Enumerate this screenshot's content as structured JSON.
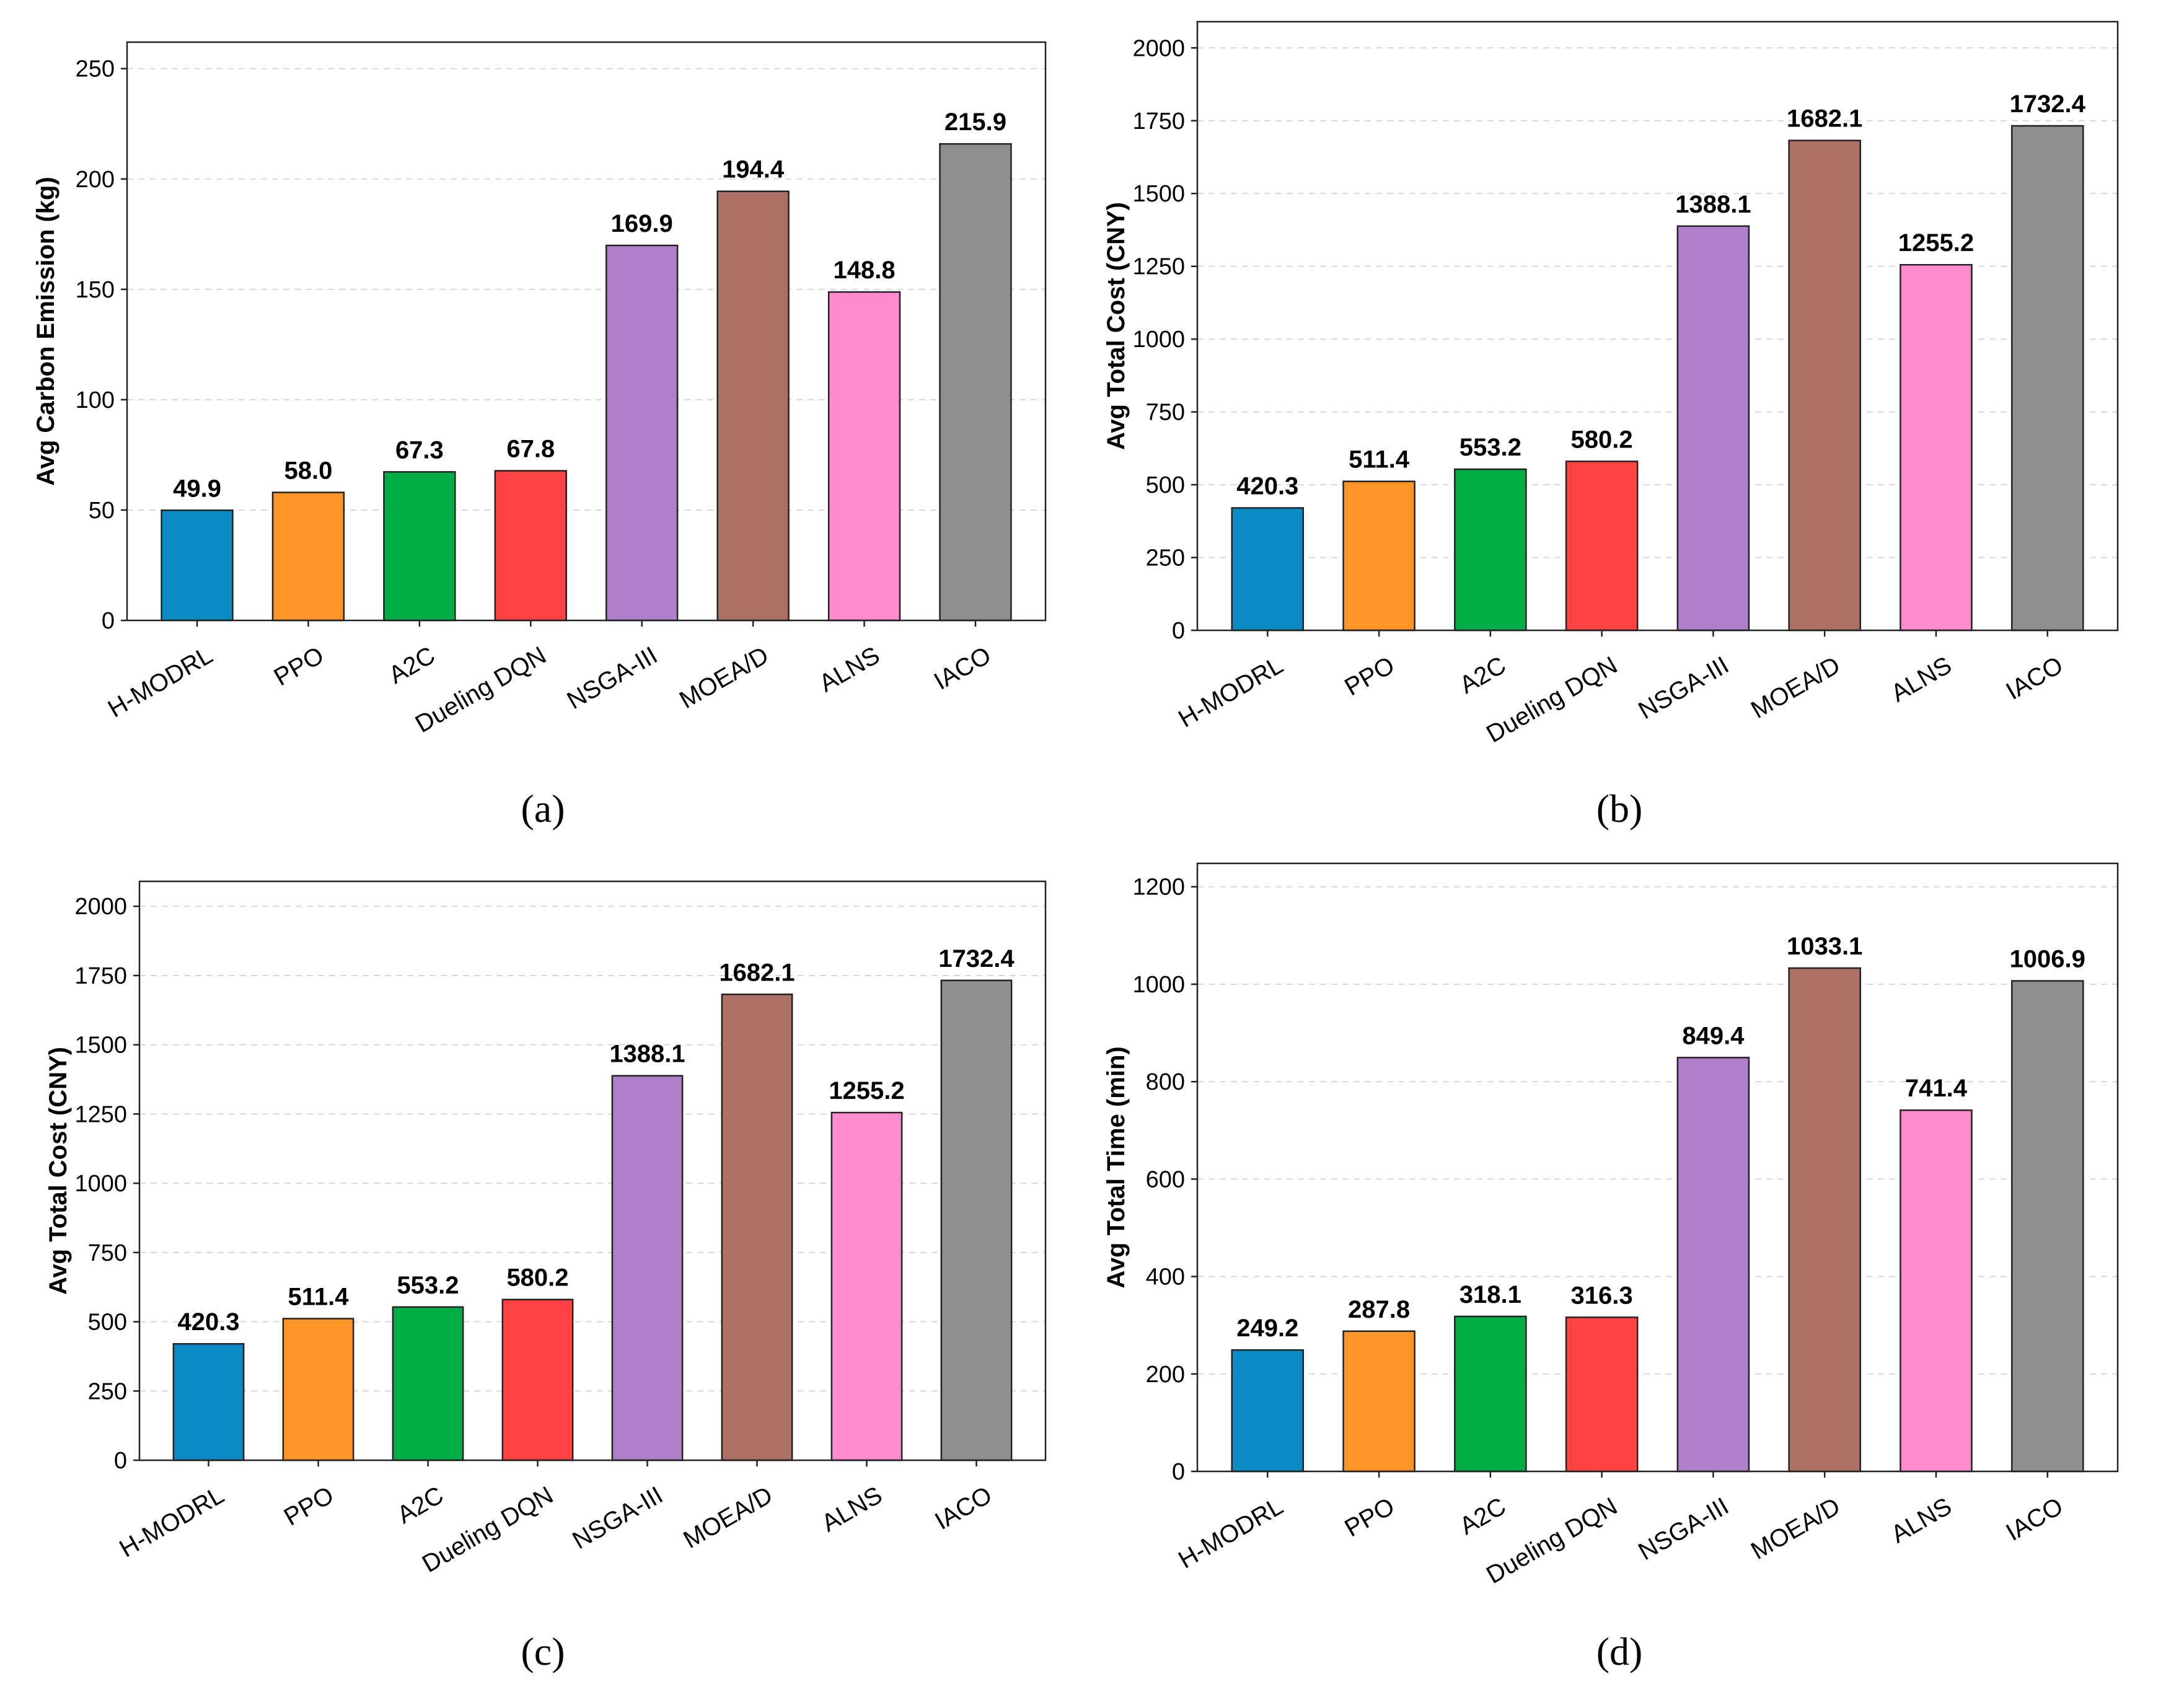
{
  "colors": {
    "H-MODRL": "#0a8bc4",
    "PPO": "#ff9429",
    "A2C": "#00ad47",
    "Dueling DQN": "#ff4343",
    "NSGA-III": "#b07fc9",
    "MOEA/D": "#ad7065",
    "ALNS": "#ff8bcf",
    "IACO": "#8f8f8f"
  },
  "chart_data": [
    {
      "panel": "a",
      "caption": "(a)",
      "type": "bar",
      "categories": [
        "H-MODRL",
        "PPO",
        "A2C",
        "Dueling DQN",
        "NSGA-III",
        "MOEA/D",
        "ALNS",
        "IACO"
      ],
      "values": [
        49.9,
        58.0,
        67.3,
        67.8,
        169.9,
        194.4,
        148.8,
        215.9
      ],
      "value_labels": [
        "49.9",
        "58.0",
        "67.3",
        "67.8",
        "169.9",
        "194.4",
        "148.8",
        "215.9"
      ],
      "ylabel": "Avg Carbon Emission (kg)",
      "xlabel": "",
      "ylim": [
        0,
        262
      ],
      "yticks": [
        0,
        50,
        100,
        150,
        200,
        250
      ],
      "grid": true
    },
    {
      "panel": "b",
      "caption": "(b)",
      "type": "bar",
      "categories": [
        "H-MODRL",
        "PPO",
        "A2C",
        "Dueling DQN",
        "NSGA-III",
        "MOEA/D",
        "ALNS",
        "IACO"
      ],
      "values": [
        420.3,
        511.4,
        553.2,
        580.2,
        1388.1,
        1682.1,
        1255.2,
        1732.4
      ],
      "value_labels": [
        "420.3",
        "511.4",
        "553.2",
        "580.2",
        "1388.1",
        "1682.1",
        "1255.2",
        "1732.4"
      ],
      "ylabel": "Avg Total Cost (CNY)",
      "xlabel": "",
      "ylim": [
        0,
        2090
      ],
      "yticks": [
        0,
        250,
        500,
        750,
        1000,
        1250,
        1500,
        1750,
        2000
      ],
      "grid": true
    },
    {
      "panel": "c",
      "caption": "(c)",
      "type": "bar",
      "categories": [
        "H-MODRL",
        "PPO",
        "A2C",
        "Dueling DQN",
        "NSGA-III",
        "MOEA/D",
        "ALNS",
        "IACO"
      ],
      "values": [
        420.3,
        511.4,
        553.2,
        580.2,
        1388.1,
        1682.1,
        1255.2,
        1732.4
      ],
      "value_labels": [
        "420.3",
        "511.4",
        "553.2",
        "580.2",
        "1388.1",
        "1682.1",
        "1255.2",
        "1732.4"
      ],
      "ylabel": "Avg Total Cost (CNY)",
      "xlabel": "",
      "ylim": [
        0,
        2090
      ],
      "yticks": [
        0,
        250,
        500,
        750,
        1000,
        1250,
        1500,
        1750,
        2000
      ],
      "grid": true
    },
    {
      "panel": "d",
      "caption": "(d)",
      "type": "bar",
      "categories": [
        "H-MODRL",
        "PPO",
        "A2C",
        "Dueling DQN",
        "NSGA-III",
        "MOEA/D",
        "ALNS",
        "IACO"
      ],
      "values": [
        249.2,
        287.8,
        318.1,
        316.3,
        849.4,
        1033.1,
        741.4,
        1006.9
      ],
      "value_labels": [
        "249.2",
        "287.8",
        "318.1",
        "316.3",
        "849.4",
        "1033.1",
        "741.4",
        "1006.9"
      ],
      "ylabel": "Avg Total Time (min)",
      "xlabel": "",
      "ylim": [
        0,
        1248
      ],
      "yticks": [
        0,
        200,
        400,
        600,
        800,
        1000,
        1200
      ],
      "grid": true
    }
  ]
}
